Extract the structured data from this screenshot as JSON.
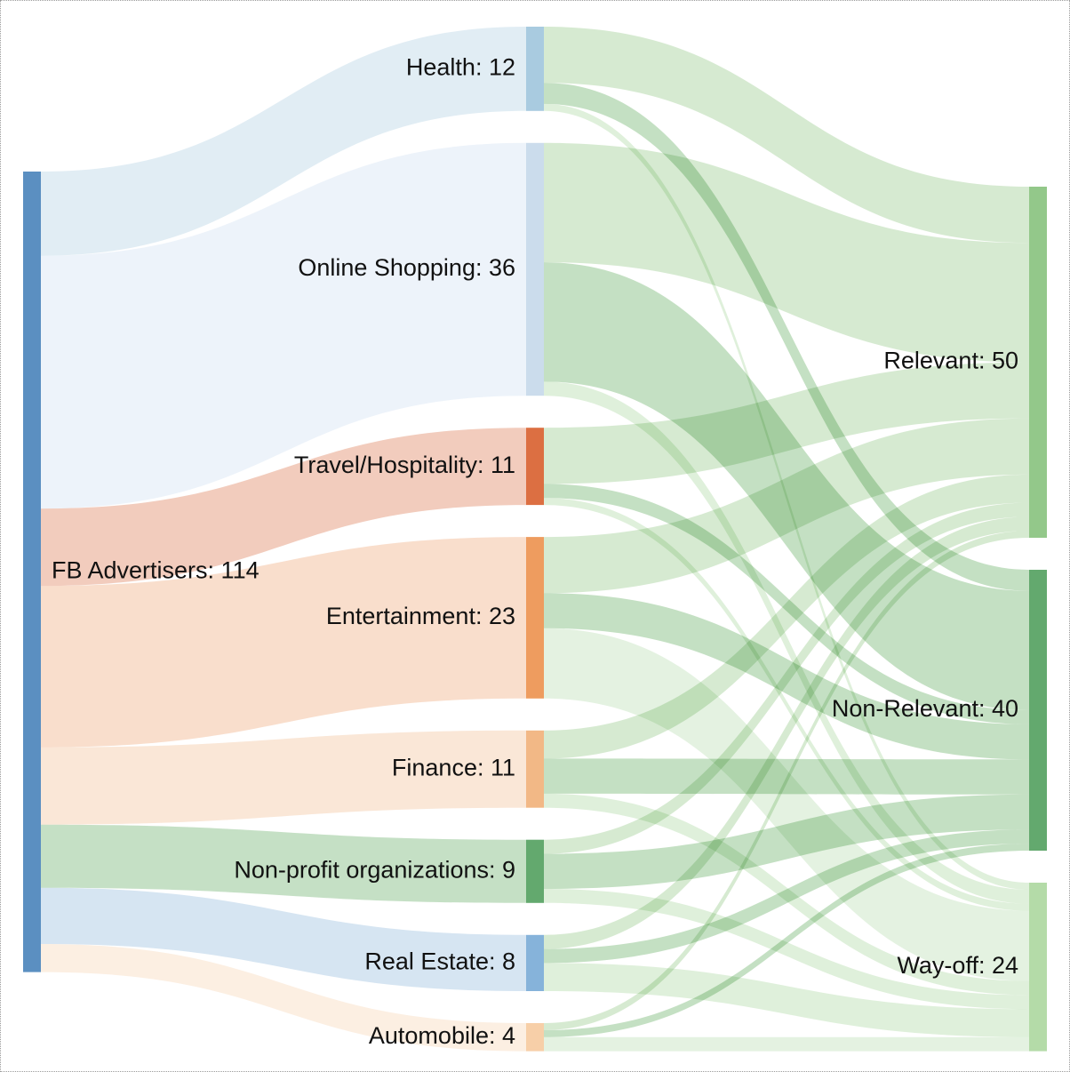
{
  "diagram": {
    "type": "sankey",
    "link_opacity": 0.45,
    "nodes": [
      {
        "id": "fb",
        "label": "FB Advertisers: 114",
        "name": "FB Advertisers",
        "value": 114,
        "column": 0,
        "color": "#5b8fc1"
      },
      {
        "id": "health",
        "label": "Health: 12",
        "name": "Health",
        "value": 12,
        "column": 1,
        "color": "#a9cbe0"
      },
      {
        "id": "shopping",
        "label": "Online Shopping: 36",
        "name": "Online Shopping",
        "value": 36,
        "column": 1,
        "color": "#cbdcec"
      },
      {
        "id": "travel",
        "label": "Travel/Hospitality: 11",
        "name": "Travel/Hospitality",
        "value": 11,
        "column": 1,
        "color": "#dc6f42"
      },
      {
        "id": "entertainment",
        "label": "Entertainment: 23",
        "name": "Entertainment",
        "value": 23,
        "column": 1,
        "color": "#ee9c5f"
      },
      {
        "id": "finance",
        "label": "Finance: 11",
        "name": "Finance",
        "value": 11,
        "column": 1,
        "color": "#f2b886"
      },
      {
        "id": "nonprofit",
        "label": "Non-profit organizations: 9",
        "name": "Non-profit organizations",
        "value": 9,
        "column": 1,
        "color": "#63a96e"
      },
      {
        "id": "realestate",
        "label": "Real Estate: 8",
        "name": "Real Estate",
        "value": 8,
        "column": 1,
        "color": "#86b3da"
      },
      {
        "id": "automobile",
        "label": "Automobile: 4",
        "name": "Automobile",
        "value": 4,
        "column": 1,
        "color": "#f7cfa8"
      },
      {
        "id": "relevant",
        "label": "Relevant: 50",
        "name": "Relevant",
        "value": 50,
        "column": 2,
        "color": "#93c88a"
      },
      {
        "id": "nonrelevant",
        "label": "Non-Relevant: 40",
        "name": "Non-Relevant",
        "value": 40,
        "column": 2,
        "color": "#63a96e"
      },
      {
        "id": "wayoff",
        "label": "Way-off: 24",
        "name": "Way-off",
        "value": 24,
        "column": 2,
        "color": "#b4dba8"
      }
    ],
    "links": [
      {
        "source": "fb",
        "target": "health",
        "value": 12,
        "color": "#bcd8e6"
      },
      {
        "source": "fb",
        "target": "shopping",
        "value": 36,
        "color": "#d8e5f3"
      },
      {
        "source": "fb",
        "target": "travel",
        "value": 11,
        "color": "#e28e6c"
      },
      {
        "source": "fb",
        "target": "entertainment",
        "value": 23,
        "color": "#f1b68e"
      },
      {
        "source": "fb",
        "target": "finance",
        "value": 11,
        "color": "#f5c9a6"
      },
      {
        "source": "fb",
        "target": "nonprofit",
        "value": 9,
        "color": "#7fba7e"
      },
      {
        "source": "fb",
        "target": "realestate",
        "value": 8,
        "color": "#a4c5e2"
      },
      {
        "source": "fb",
        "target": "automobile",
        "value": 4,
        "color": "#f9dcbf"
      },
      {
        "source": "health",
        "target": "relevant",
        "value": 8,
        "color": "#a3d09a"
      },
      {
        "source": "health",
        "target": "nonrelevant",
        "value": 3,
        "color": "#7dba7a"
      },
      {
        "source": "health",
        "target": "wayoff",
        "value": 1,
        "color": "#b8ddb0"
      },
      {
        "source": "shopping",
        "target": "relevant",
        "value": 17,
        "color": "#a3d09a"
      },
      {
        "source": "shopping",
        "target": "nonrelevant",
        "value": 17,
        "color": "#7dba7a"
      },
      {
        "source": "shopping",
        "target": "wayoff",
        "value": 2,
        "color": "#b8ddb0"
      },
      {
        "source": "travel",
        "target": "relevant",
        "value": 8,
        "color": "#a3d09a"
      },
      {
        "source": "travel",
        "target": "nonrelevant",
        "value": 2,
        "color": "#7dba7a"
      },
      {
        "source": "travel",
        "target": "wayoff",
        "value": 1,
        "color": "#b8ddb0"
      },
      {
        "source": "entertainment",
        "target": "relevant",
        "value": 8,
        "color": "#a3d09a"
      },
      {
        "source": "entertainment",
        "target": "nonrelevant",
        "value": 5,
        "color": "#7dba7a"
      },
      {
        "source": "entertainment",
        "target": "wayoff",
        "value": 10,
        "color": "#c4e3bc"
      },
      {
        "source": "finance",
        "target": "relevant",
        "value": 4,
        "color": "#a3d09a"
      },
      {
        "source": "finance",
        "target": "nonrelevant",
        "value": 5,
        "color": "#7dba7a"
      },
      {
        "source": "finance",
        "target": "wayoff",
        "value": 2,
        "color": "#b8ddb0"
      },
      {
        "source": "nonprofit",
        "target": "relevant",
        "value": 2,
        "color": "#a3d09a"
      },
      {
        "source": "nonprofit",
        "target": "nonrelevant",
        "value": 5,
        "color": "#7dba7a"
      },
      {
        "source": "nonprofit",
        "target": "wayoff",
        "value": 2,
        "color": "#b8ddb0"
      },
      {
        "source": "realestate",
        "target": "relevant",
        "value": 2,
        "color": "#a3d09a"
      },
      {
        "source": "realestate",
        "target": "nonrelevant",
        "value": 2,
        "color": "#7dba7a"
      },
      {
        "source": "realestate",
        "target": "wayoff",
        "value": 4,
        "color": "#b8ddb0"
      },
      {
        "source": "automobile",
        "target": "relevant",
        "value": 1,
        "color": "#a3d09a"
      },
      {
        "source": "automobile",
        "target": "nonrelevant",
        "value": 1,
        "color": "#7dba7a"
      },
      {
        "source": "automobile",
        "target": "wayoff",
        "value": 2,
        "color": "#c4e3bc"
      }
    ]
  }
}
